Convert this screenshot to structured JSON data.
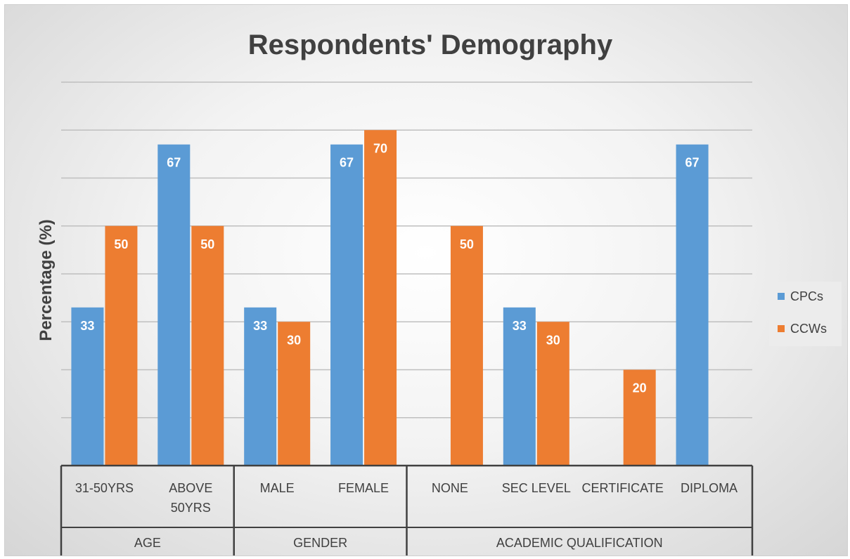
{
  "chart_data": {
    "type": "bar",
    "title": "Respondents' Demography",
    "ylabel": "Percentage (%)",
    "xlabel": "",
    "ylim": [
      0,
      80
    ],
    "grid": true,
    "legend_position": "right",
    "categories": [
      {
        "label": [
          "31-50YRS"
        ],
        "group": 0
      },
      {
        "label": [
          "ABOVE",
          "50YRS"
        ],
        "group": 0
      },
      {
        "label": [
          "MALE"
        ],
        "group": 1
      },
      {
        "label": [
          "FEMALE"
        ],
        "group": 1
      },
      {
        "label": [
          "NONE"
        ],
        "group": 2
      },
      {
        "label": [
          "SEC LEVEL"
        ],
        "group": 2
      },
      {
        "label": [
          "CERTIFICATE"
        ],
        "group": 2
      },
      {
        "label": [
          "DIPLOMA"
        ],
        "group": 2
      }
    ],
    "groups": [
      "AGE",
      "GENDER",
      "ACADEMIC QUALIFICATION"
    ],
    "series": [
      {
        "name": "CPCs",
        "color": "#5b9bd5",
        "values": [
          33,
          67,
          33,
          67,
          null,
          33,
          null,
          67
        ],
        "labels": [
          "33",
          "67",
          "33",
          "67",
          "",
          "33",
          "",
          "67"
        ]
      },
      {
        "name": "CCWs",
        "color": "#ed7d31",
        "values": [
          50,
          50,
          30,
          70,
          50,
          30,
          20,
          null
        ],
        "labels": [
          "50",
          "50",
          "30",
          "70",
          "50",
          "30",
          "20",
          ""
        ]
      }
    ]
  }
}
